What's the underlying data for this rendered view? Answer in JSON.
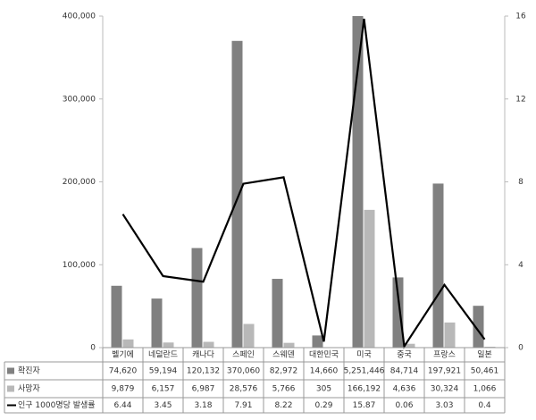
{
  "chart_data": {
    "type": "bar-line",
    "categories": [
      "벨기에",
      "네덜란드",
      "캐나다",
      "스페인",
      "스웨덴",
      "대한민국",
      "미국",
      "중국",
      "프랑스",
      "일본"
    ],
    "series": [
      {
        "name": "확진자",
        "color": "#808080",
        "type": "bar",
        "values": [
          74620,
          59194,
          120132,
          370060,
          82972,
          14660,
          5251446,
          84714,
          197921,
          50461
        ],
        "value_labels": [
          "74,620",
          "59,194",
          "120,132",
          "370,060",
          "82,972",
          "14,660",
          "5,251,446",
          "84,714",
          "197,921",
          "50,461"
        ]
      },
      {
        "name": "사망자",
        "color": "#b8b8b8",
        "type": "bar",
        "values": [
          9879,
          6157,
          6987,
          28576,
          5766,
          305,
          166192,
          4636,
          30324,
          1066
        ],
        "value_labels": [
          "9,879",
          "6,157",
          "6,987",
          "28,576",
          "5,766",
          "305",
          "166,192",
          "4,636",
          "30,324",
          "1,066"
        ]
      },
      {
        "name": "인구 1000명당 발생률",
        "color": "#000000",
        "type": "line",
        "axis": "y2",
        "values": [
          6.44,
          3.45,
          3.18,
          7.91,
          8.22,
          0.29,
          15.87,
          0.06,
          3.03,
          0.4
        ]
      }
    ],
    "ylim": [
      0,
      400000
    ],
    "yticks": [
      0,
      {
        "value": 100000,
        "label": "100,000"
      },
      {
        "value": 200000,
        "label": "200,000"
      },
      {
        "value": 300000,
        "label": "300,000"
      },
      {
        "value": 400000,
        "label": "400,000"
      }
    ],
    "y2lim": [
      0,
      16
    ],
    "y2ticks": [
      0,
      4,
      8,
      12,
      16
    ]
  }
}
